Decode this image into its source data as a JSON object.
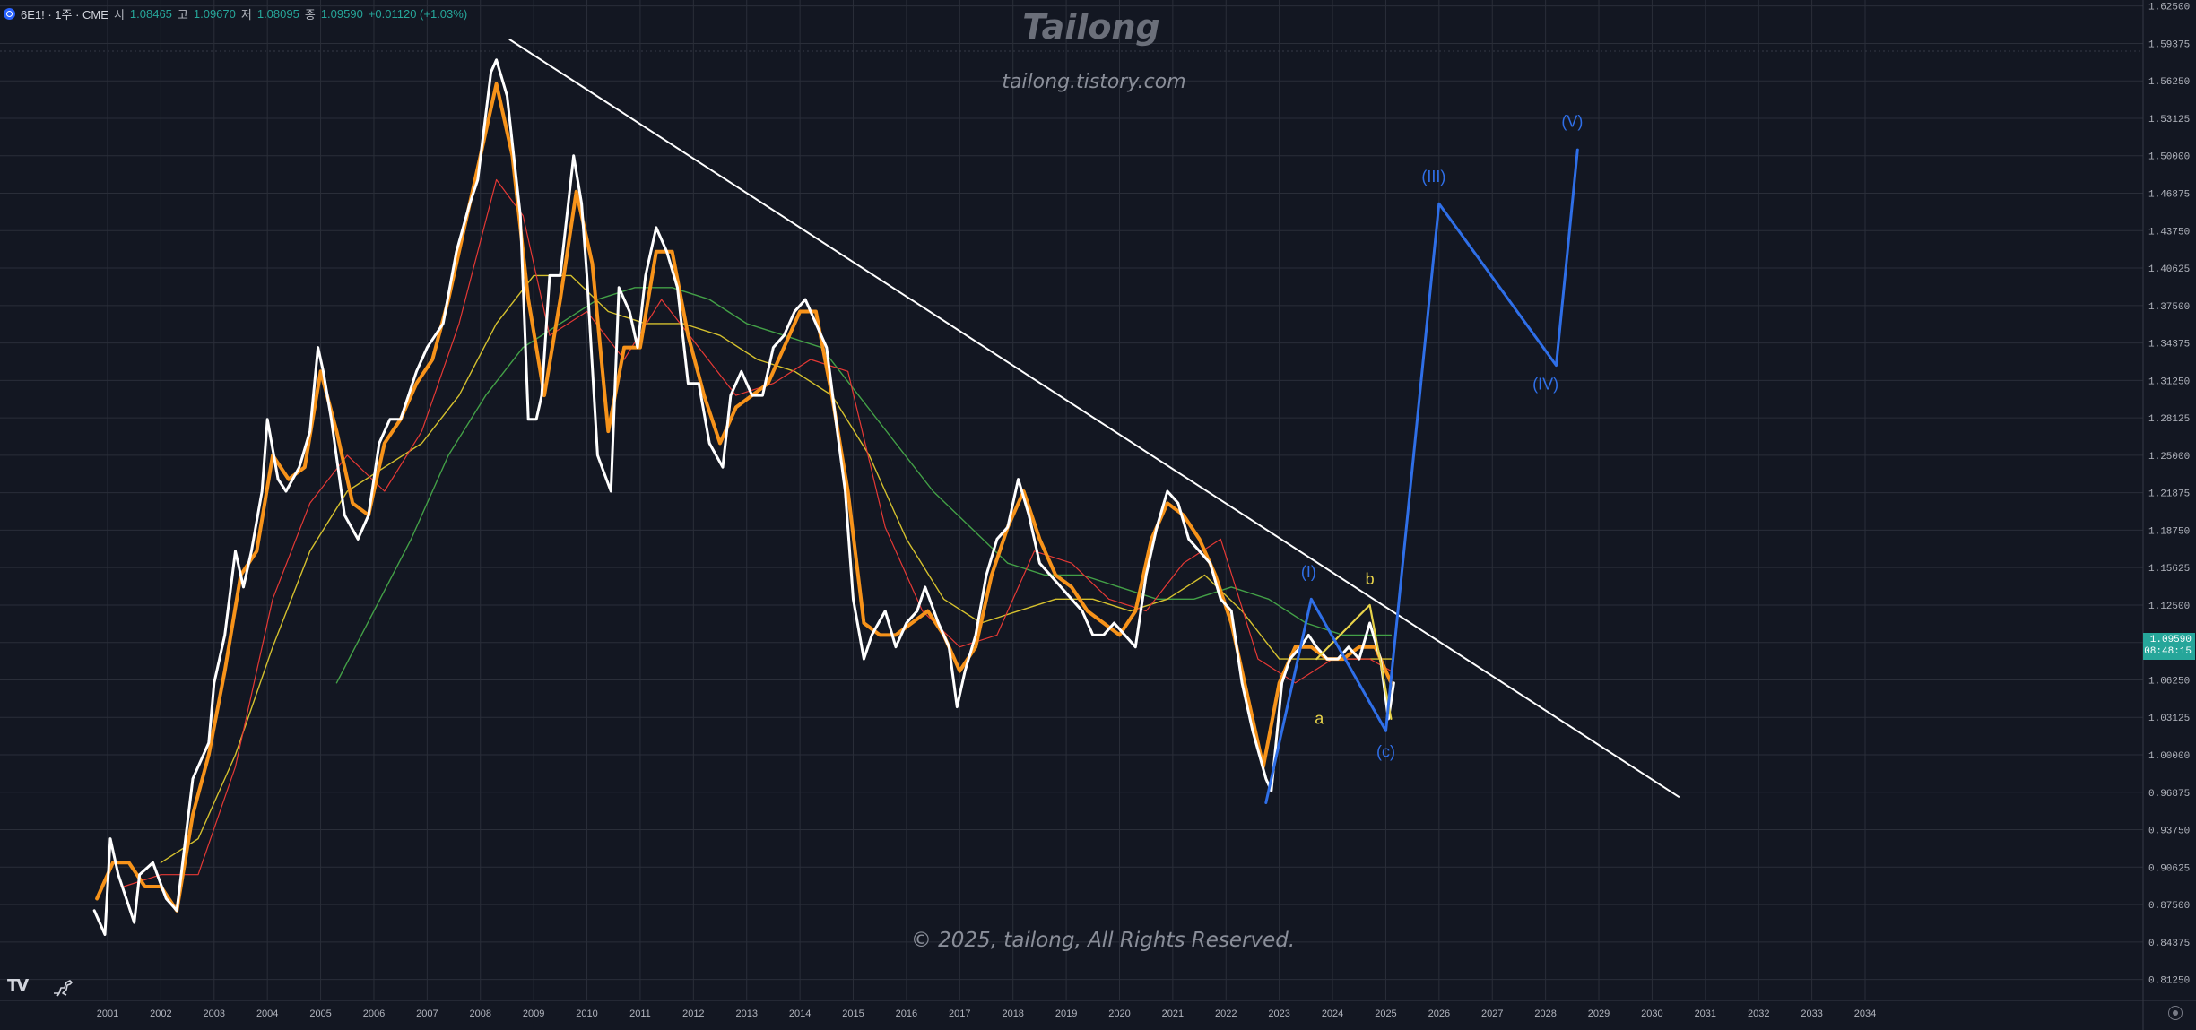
{
  "header": {
    "symbol": "6E1! · 1주 · CME",
    "open_label": "시",
    "open": "1.08465",
    "high_label": "고",
    "high": "1.09670",
    "low_label": "저",
    "low": "1.08095",
    "close_label": "종",
    "close": "1.09590",
    "change": "+0.01120 (+1.03%)"
  },
  "watermark": {
    "title": "Tailong",
    "site": "tailong.tistory.com",
    "copyright": "© 2025, tailong, All Rights Reserved."
  },
  "price_tag": {
    "price": "1.09590",
    "countdown": "08:48:15"
  },
  "branding": {
    "logo_text": "TV"
  },
  "colors": {
    "background": "#131722",
    "grid": "#2a2e39",
    "price_line": "#ffffff",
    "ma_short": "#f7931a",
    "ma_red": "#e53935",
    "ma_yellow": "#d4c02e",
    "ma_green": "#43a047",
    "wave_blue": "#2f6fe8",
    "abc_yellow": "#e8d34a",
    "trendline": "#ffffff",
    "price_tag": "#26a69a"
  },
  "chart_data": {
    "type": "line",
    "title": "6E1! · 1주 · CME",
    "x_axis": {
      "ticks": [
        "2001",
        "2002",
        "2003",
        "2004",
        "2005",
        "2006",
        "2007",
        "2008",
        "2009",
        "2010",
        "2011",
        "2012",
        "2013",
        "2014",
        "2015",
        "2016",
        "2017",
        "2018",
        "2019",
        "2020",
        "2021",
        "2022",
        "2023",
        "2024",
        "2025",
        "2026",
        "2027",
        "2028",
        "2029",
        "2030",
        "2031",
        "2032",
        "2033",
        "2034"
      ],
      "range": [
        2000.5,
        2035.5
      ]
    },
    "y_axis": {
      "ticks": [
        "1.62500",
        "1.59375",
        "1.56250",
        "1.53125",
        "1.50000",
        "1.46875",
        "1.43750",
        "1.40625",
        "1.37500",
        "1.34375",
        "1.31250",
        "1.28125",
        "1.25000",
        "1.21875",
        "1.18750",
        "1.15625",
        "1.12500",
        "1.09375",
        "1.06250",
        "1.03125",
        "1.00000",
        "0.96875",
        "0.93750",
        "0.90625",
        "0.87500",
        "0.84375",
        "0.81250"
      ],
      "range": [
        0.795,
        1.63
      ],
      "position": "right"
    },
    "grid": true,
    "series": [
      {
        "style": "price",
        "x": [
          2000.75,
          2000.95,
          2001.05,
          2001.2,
          2001.35,
          2001.5,
          2001.6,
          2001.85,
          2002.1,
          2002.3,
          2002.6,
          2002.9,
          2003.0,
          2003.2,
          2003.4,
          2003.55,
          2003.7,
          2003.9,
          2004.0,
          2004.2,
          2004.35,
          2004.6,
          2004.8,
          2004.95,
          2005.05,
          2005.2,
          2005.45,
          2005.7,
          2005.9,
          2006.1,
          2006.3,
          2006.5,
          2006.8,
          2007.0,
          2007.3,
          2007.55,
          2007.8,
          2007.95,
          2008.2,
          2008.3,
          2008.5,
          2008.75,
          2008.9,
          2009.05,
          2009.15,
          2009.3,
          2009.5,
          2009.75,
          2009.9,
          2010.0,
          2010.2,
          2010.45,
          2010.6,
          2010.8,
          2010.95,
          2011.1,
          2011.3,
          2011.5,
          2011.7,
          2011.9,
          2012.1,
          2012.3,
          2012.55,
          2012.7,
          2012.9,
          2013.1,
          2013.3,
          2013.5,
          2013.7,
          2013.9,
          2014.1,
          2014.3,
          2014.5,
          2014.7,
          2014.85,
          2015.0,
          2015.2,
          2015.35,
          2015.6,
          2015.8,
          2016.0,
          2016.2,
          2016.35,
          2016.6,
          2016.8,
          2016.95,
          2017.1,
          2017.3,
          2017.5,
          2017.7,
          2017.9,
          2018.1,
          2018.3,
          2018.5,
          2018.7,
          2018.9,
          2019.1,
          2019.3,
          2019.5,
          2019.7,
          2019.9,
          2020.1,
          2020.3,
          2020.5,
          2020.7,
          2020.9,
          2021.1,
          2021.3,
          2021.5,
          2021.7,
          2021.9,
          2022.1,
          2022.3,
          2022.5,
          2022.75,
          2022.85,
          2023.05,
          2023.2,
          2023.4,
          2023.55,
          2023.7,
          2023.9,
          2024.1,
          2024.3,
          2024.5,
          2024.7,
          2024.9,
          2025.05,
          2025.15
        ],
        "y": [
          0.87,
          0.85,
          0.93,
          0.9,
          0.88,
          0.86,
          0.9,
          0.91,
          0.88,
          0.87,
          0.98,
          1.01,
          1.06,
          1.1,
          1.17,
          1.14,
          1.17,
          1.22,
          1.28,
          1.23,
          1.22,
          1.24,
          1.27,
          1.34,
          1.32,
          1.28,
          1.2,
          1.18,
          1.2,
          1.26,
          1.28,
          1.28,
          1.32,
          1.34,
          1.36,
          1.42,
          1.46,
          1.48,
          1.57,
          1.58,
          1.55,
          1.45,
          1.28,
          1.28,
          1.3,
          1.4,
          1.4,
          1.5,
          1.46,
          1.4,
          1.25,
          1.22,
          1.39,
          1.37,
          1.34,
          1.4,
          1.44,
          1.42,
          1.39,
          1.31,
          1.31,
          1.26,
          1.24,
          1.3,
          1.32,
          1.3,
          1.3,
          1.34,
          1.35,
          1.37,
          1.38,
          1.36,
          1.34,
          1.27,
          1.22,
          1.13,
          1.08,
          1.1,
          1.12,
          1.09,
          1.11,
          1.12,
          1.14,
          1.11,
          1.09,
          1.04,
          1.07,
          1.1,
          1.15,
          1.18,
          1.19,
          1.23,
          1.2,
          1.16,
          1.15,
          1.14,
          1.13,
          1.12,
          1.1,
          1.1,
          1.11,
          1.1,
          1.09,
          1.15,
          1.19,
          1.22,
          1.21,
          1.18,
          1.17,
          1.16,
          1.13,
          1.12,
          1.06,
          1.02,
          0.98,
          0.97,
          1.06,
          1.08,
          1.09,
          1.1,
          1.09,
          1.08,
          1.08,
          1.09,
          1.08,
          1.11,
          1.08,
          1.03,
          1.06
        ]
      },
      {
        "style": "ma_short",
        "x": [
          2000.8,
          2001.1,
          2001.4,
          2001.7,
          2002.0,
          2002.3,
          2002.6,
          2002.9,
          2003.2,
          2003.5,
          2003.8,
          2004.1,
          2004.4,
          2004.7,
          2005.0,
          2005.3,
          2005.6,
          2005.9,
          2006.2,
          2006.5,
          2006.8,
          2007.1,
          2007.4,
          2007.7,
          2008.0,
          2008.3,
          2008.6,
          2008.9,
          2009.2,
          2009.5,
          2009.8,
          2010.1,
          2010.4,
          2010.7,
          2011.0,
          2011.3,
          2011.6,
          2011.9,
          2012.2,
          2012.5,
          2012.8,
          2013.1,
          2013.4,
          2013.7,
          2014.0,
          2014.3,
          2014.6,
          2014.9,
          2015.2,
          2015.5,
          2015.8,
          2016.1,
          2016.4,
          2016.7,
          2017.0,
          2017.3,
          2017.6,
          2017.9,
          2018.2,
          2018.5,
          2018.8,
          2019.1,
          2019.4,
          2019.7,
          2020.0,
          2020.3,
          2020.6,
          2020.9,
          2021.2,
          2021.5,
          2021.8,
          2022.1,
          2022.4,
          2022.7,
          2023.0,
          2023.3,
          2023.6,
          2023.9,
          2024.2,
          2024.5,
          2024.8,
          2025.1
        ],
        "y": [
          0.88,
          0.91,
          0.91,
          0.89,
          0.89,
          0.87,
          0.95,
          1.0,
          1.07,
          1.15,
          1.17,
          1.25,
          1.23,
          1.24,
          1.32,
          1.27,
          1.21,
          1.2,
          1.26,
          1.28,
          1.31,
          1.33,
          1.38,
          1.44,
          1.5,
          1.56,
          1.5,
          1.38,
          1.3,
          1.38,
          1.47,
          1.41,
          1.27,
          1.34,
          1.34,
          1.42,
          1.42,
          1.35,
          1.3,
          1.26,
          1.29,
          1.3,
          1.31,
          1.34,
          1.37,
          1.37,
          1.3,
          1.22,
          1.11,
          1.1,
          1.1,
          1.11,
          1.12,
          1.1,
          1.07,
          1.09,
          1.15,
          1.19,
          1.22,
          1.18,
          1.15,
          1.14,
          1.12,
          1.11,
          1.1,
          1.12,
          1.18,
          1.21,
          1.2,
          1.18,
          1.15,
          1.11,
          1.05,
          0.99,
          1.06,
          1.09,
          1.09,
          1.08,
          1.08,
          1.09,
          1.09,
          1.06
        ]
      },
      {
        "style": "ma_red",
        "x": [
          2001.3,
          2002.0,
          2002.7,
          2003.4,
          2004.1,
          2004.8,
          2005.5,
          2006.2,
          2006.9,
          2007.6,
          2008.3,
          2008.8,
          2009.3,
          2010.0,
          2010.7,
          2011.4,
          2012.1,
          2012.8,
          2013.5,
          2014.2,
          2014.9,
          2015.6,
          2016.3,
          2017.0,
          2017.7,
          2018.4,
          2019.1,
          2019.8,
          2020.5,
          2021.2,
          2021.9,
          2022.6,
          2023.3,
          2024.0,
          2024.7,
          2025.1
        ],
        "y": [
          0.89,
          0.9,
          0.9,
          0.99,
          1.13,
          1.21,
          1.25,
          1.22,
          1.27,
          1.36,
          1.48,
          1.45,
          1.35,
          1.37,
          1.33,
          1.38,
          1.34,
          1.3,
          1.31,
          1.33,
          1.32,
          1.19,
          1.12,
          1.09,
          1.1,
          1.17,
          1.16,
          1.13,
          1.12,
          1.16,
          1.18,
          1.08,
          1.06,
          1.08,
          1.08,
          1.07
        ]
      },
      {
        "style": "ma_yellow",
        "x": [
          2002.0,
          2002.7,
          2003.4,
          2004.1,
          2004.8,
          2005.5,
          2006.2,
          2006.9,
          2007.6,
          2008.3,
          2009.0,
          2009.7,
          2010.4,
          2011.1,
          2011.8,
          2012.5,
          2013.2,
          2013.9,
          2014.6,
          2015.3,
          2016.0,
          2016.7,
          2017.4,
          2018.1,
          2018.8,
          2019.5,
          2020.2,
          2020.9,
          2021.6,
          2022.3,
          2023.0,
          2023.7,
          2024.4,
          2025.1
        ],
        "y": [
          0.91,
          0.93,
          1.0,
          1.09,
          1.17,
          1.22,
          1.24,
          1.26,
          1.3,
          1.36,
          1.4,
          1.4,
          1.37,
          1.36,
          1.36,
          1.35,
          1.33,
          1.32,
          1.3,
          1.25,
          1.18,
          1.13,
          1.11,
          1.12,
          1.13,
          1.13,
          1.12,
          1.13,
          1.15,
          1.12,
          1.08,
          1.08,
          1.08,
          1.08
        ]
      },
      {
        "style": "ma_green",
        "x": [
          2005.3,
          2006.0,
          2006.7,
          2007.4,
          2008.1,
          2008.8,
          2009.5,
          2010.2,
          2010.9,
          2011.6,
          2012.3,
          2013.0,
          2013.7,
          2014.4,
          2015.1,
          2015.8,
          2016.5,
          2017.2,
          2017.9,
          2018.6,
          2019.3,
          2020.0,
          2020.7,
          2021.4,
          2022.1,
          2022.8,
          2023.5,
          2024.2,
          2024.9,
          2025.1
        ],
        "y": [
          1.06,
          1.12,
          1.18,
          1.25,
          1.3,
          1.34,
          1.36,
          1.38,
          1.39,
          1.39,
          1.38,
          1.36,
          1.35,
          1.34,
          1.3,
          1.26,
          1.22,
          1.19,
          1.16,
          1.15,
          1.15,
          1.14,
          1.13,
          1.13,
          1.14,
          1.13,
          1.11,
          1.1,
          1.1,
          1.1
        ]
      },
      {
        "style": "trendline",
        "x": [
          2008.55,
          2030.5
        ],
        "y": [
          1.597,
          0.965
        ]
      },
      {
        "style": "wave_blue",
        "x": [
          2022.75,
          2023.6,
          2025.0,
          2026.0,
          2028.2,
          2028.6
        ],
        "y": [
          0.96,
          1.13,
          1.02,
          1.46,
          1.325,
          1.505
        ]
      },
      {
        "style": "abc_yellow",
        "x": [
          2023.7,
          2024.7,
          2025.1
        ],
        "y": [
          1.08,
          1.125,
          1.03
        ]
      }
    ],
    "annotations": [
      {
        "text": "(I)",
        "x": 2023.55,
        "y": 1.148,
        "color": "#2f6fe8"
      },
      {
        "text": "(III)",
        "x": 2025.9,
        "y": 1.478,
        "color": "#2f6fe8"
      },
      {
        "text": "(IV)",
        "x": 2028.0,
        "y": 1.305,
        "color": "#2f6fe8"
      },
      {
        "text": "(V)",
        "x": 2028.5,
        "y": 1.524,
        "color": "#2f6fe8"
      },
      {
        "text": "(c)",
        "x": 2025.0,
        "y": 0.998,
        "color": "#2f6fe8"
      },
      {
        "text": "a",
        "x": 2023.75,
        "y": 1.026,
        "color": "#e8d34a"
      },
      {
        "text": "b",
        "x": 2024.7,
        "y": 1.142,
        "color": "#e8d34a"
      }
    ]
  }
}
